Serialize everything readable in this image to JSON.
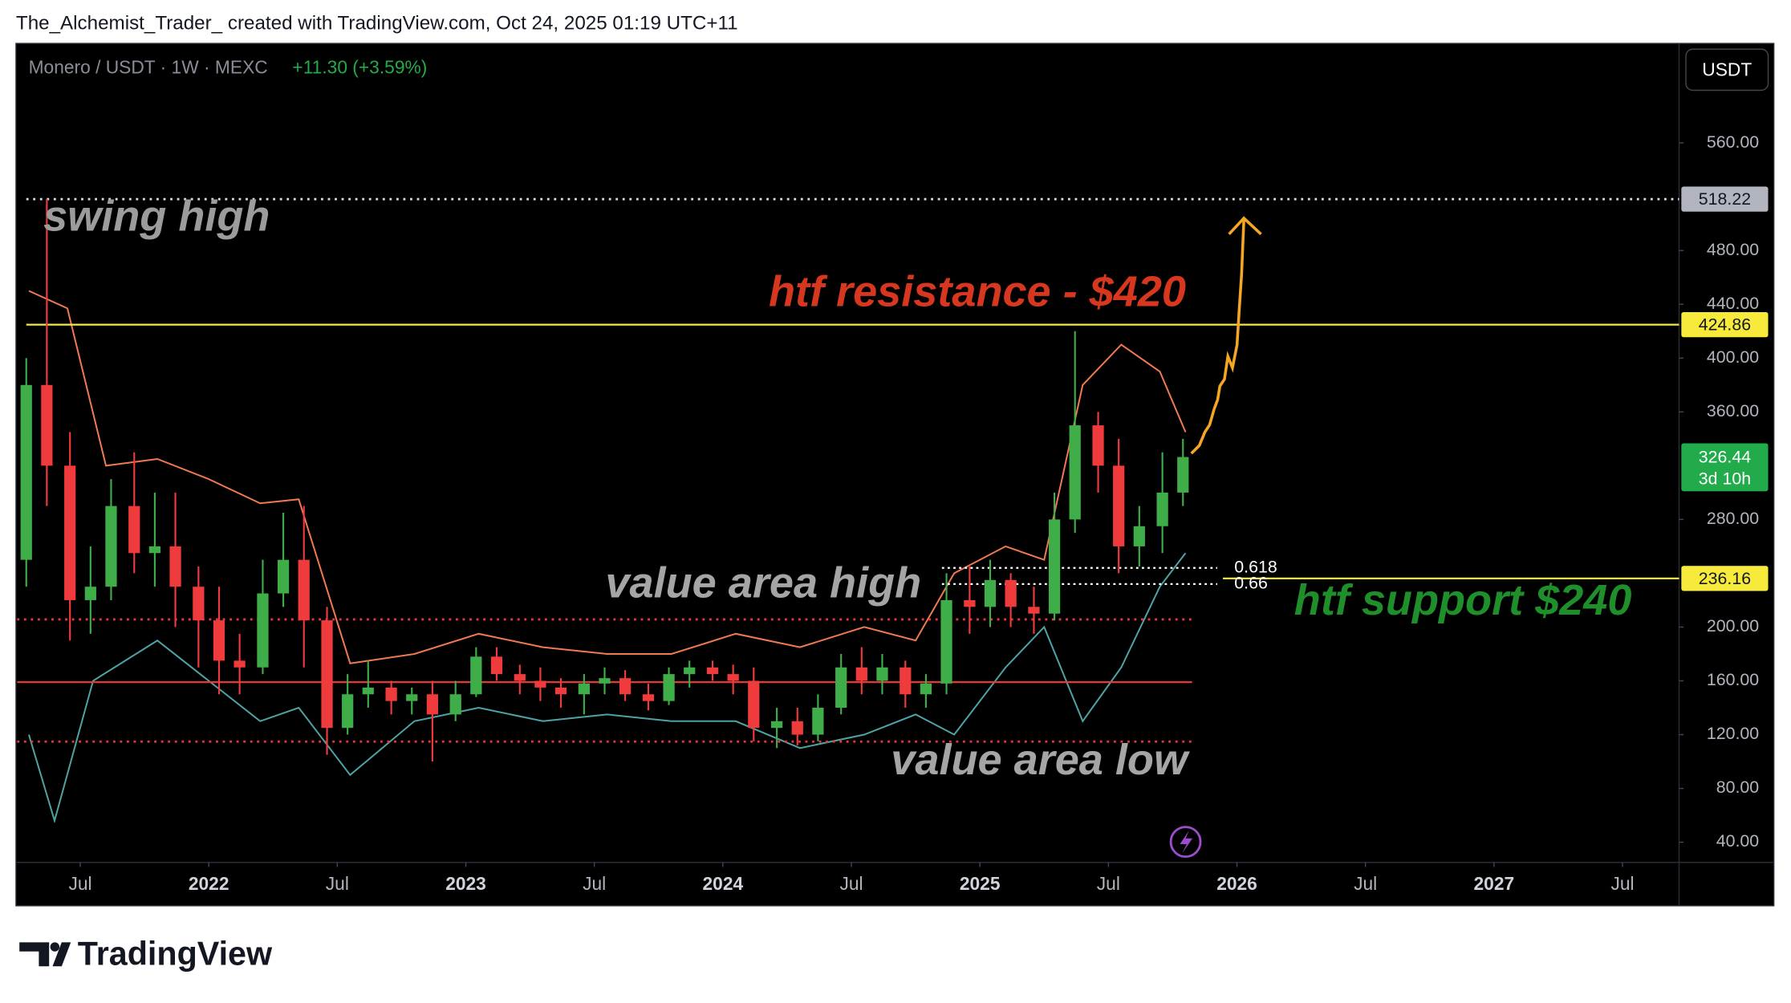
{
  "header": {
    "attribution": "The_Alchemist_Trader_ created with TradingView.com, Oct 24, 2025 01:19 UTC+11"
  },
  "chart_data": {
    "type": "candlestick",
    "symbol": "Monero / USDT · 1W · MEXC",
    "change": "+11.30 (+3.59%)",
    "currency": "USDT",
    "x": [
      2021.29,
      2021.37,
      2021.46,
      2021.54,
      2021.62,
      2021.71,
      2021.79,
      2021.87,
      2021.96,
      2022.04,
      2022.12,
      2022.21,
      2022.29,
      2022.37,
      2022.46,
      2022.54,
      2022.62,
      2022.71,
      2022.79,
      2022.87,
      2022.96,
      2023.04,
      2023.12,
      2023.21,
      2023.29,
      2023.37,
      2023.46,
      2023.54,
      2023.62,
      2023.71,
      2023.79,
      2023.87,
      2023.96,
      2024.04,
      2024.12,
      2024.21,
      2024.29,
      2024.37,
      2024.46,
      2024.54,
      2024.62,
      2024.71,
      2024.79,
      2024.87,
      2024.96,
      2025.04,
      2025.12,
      2025.21,
      2025.29,
      2025.37,
      2025.46,
      2025.54,
      2025.62,
      2025.71,
      2025.79
    ],
    "open": [
      250,
      380,
      320,
      220,
      230,
      290,
      255,
      260,
      230,
      205,
      175,
      170,
      225,
      250,
      205,
      125,
      150,
      155,
      145,
      150,
      135,
      150,
      178,
      165,
      160,
      155,
      150,
      158,
      162,
      150,
      145,
      165,
      170,
      165,
      160,
      125,
      130,
      120,
      140,
      170,
      160,
      170,
      150,
      158,
      220,
      215,
      235,
      215,
      210,
      280,
      350,
      320,
      260,
      275,
      300
    ],
    "high": [
      400,
      518.22,
      345,
      260,
      310,
      330,
      300,
      300,
      245,
      230,
      195,
      250,
      285,
      290,
      215,
      165,
      175,
      160,
      155,
      160,
      160,
      185,
      185,
      172,
      170,
      162,
      165,
      170,
      168,
      158,
      170,
      175,
      175,
      172,
      170,
      140,
      140,
      150,
      180,
      185,
      180,
      175,
      165,
      240,
      245,
      250,
      240,
      230,
      300,
      420,
      360,
      340,
      290,
      330,
      340
    ],
    "low": [
      230,
      290,
      190,
      195,
      220,
      240,
      230,
      200,
      170,
      150,
      150,
      165,
      215,
      170,
      105,
      120,
      140,
      135,
      135,
      100,
      130,
      148,
      160,
      150,
      145,
      140,
      135,
      150,
      145,
      138,
      142,
      155,
      160,
      150,
      115,
      110,
      112,
      115,
      135,
      150,
      150,
      140,
      140,
      150,
      195,
      200,
      200,
      195,
      205,
      270,
      300,
      240,
      245,
      255,
      290
    ],
    "close": [
      380,
      320,
      220,
      230,
      290,
      255,
      260,
      230,
      205,
      175,
      170,
      225,
      250,
      205,
      125,
      150,
      155,
      145,
      150,
      135,
      150,
      178,
      165,
      160,
      155,
      150,
      158,
      162,
      150,
      145,
      165,
      170,
      165,
      160,
      125,
      130,
      120,
      140,
      170,
      160,
      170,
      150,
      158,
      220,
      215,
      235,
      215,
      210,
      280,
      350,
      320,
      260,
      275,
      300,
      326.44
    ],
    "up_color": "#3fae49",
    "down_color": "#ef3b3b",
    "last_color": "#22ab4a",
    "countdown": "3d 10h",
    "bands": [
      {
        "color": "#f07a52",
        "x": [
          2021.3,
          2021.45,
          2021.6,
          2021.8,
          2022.0,
          2022.2,
          2022.35,
          2022.55,
          2022.8,
          2023.05,
          2023.3,
          2023.55,
          2023.8,
          2024.05,
          2024.3,
          2024.55,
          2024.75,
          2024.9,
          2025.1,
          2025.25,
          2025.4,
          2025.55,
          2025.7,
          2025.8
        ],
        "values": [
          450,
          437,
          320,
          325,
          310,
          292,
          295,
          173,
          180,
          195,
          185,
          180,
          180,
          195,
          185,
          200,
          190,
          240,
          260,
          250,
          380,
          410,
          390,
          345
        ]
      },
      {
        "color": "#4fa3a5",
        "x": [
          2021.3,
          2021.4,
          2021.55,
          2021.8,
          2022.0,
          2022.2,
          2022.35,
          2022.55,
          2022.8,
          2023.05,
          2023.3,
          2023.55,
          2023.8,
          2024.05,
          2024.3,
          2024.55,
          2024.75,
          2024.9,
          2025.1,
          2025.25,
          2025.4,
          2025.55,
          2025.7,
          2025.8
        ],
        "values": [
          120,
          56,
          160,
          190,
          160,
          130,
          140,
          90,
          130,
          140,
          130,
          135,
          130,
          130,
          110,
          120,
          135,
          120,
          170,
          200,
          130,
          170,
          230,
          255
        ]
      }
    ],
    "levels": [
      {
        "value": 518.22,
        "color": "#d9d9d9",
        "dash": "dotted",
        "span": "full",
        "badge": true,
        "badge_color": "#b2b5be"
      },
      {
        "value": 424.86,
        "color": "#f5e94a",
        "dash": "solid",
        "span": "full",
        "badge": true,
        "badge_color": "#f7ea3a"
      },
      {
        "value": 236.16,
        "color": "#f5e94a",
        "dash": "solid",
        "span": "right",
        "badge": true,
        "badge_color": "#f7ea3a"
      },
      {
        "value": 205.7,
        "color": "#e53935",
        "dash": "dotted",
        "span": "data",
        "badge": false
      },
      {
        "value": 114.8,
        "color": "#e53935",
        "dash": "dotted",
        "span": "data",
        "badge": false
      },
      {
        "value": 159,
        "color": "#e53935",
        "dash": "solid",
        "span": "data",
        "badge": false
      }
    ],
    "fib": [
      {
        "level": 0.618,
        "value": 244
      },
      {
        "level": 0.66,
        "value": 232
      }
    ],
    "annotations": [
      {
        "text": "swing high",
        "color": "#9c9c9c"
      },
      {
        "text": "htf resistance - $420",
        "color": "#d7371f"
      },
      {
        "text": "value area high",
        "color": "#a5a5a5"
      },
      {
        "text": "value area low",
        "color": "#a5a5a5"
      },
      {
        "text": "htf support $240",
        "color": "#1f8f2b"
      }
    ],
    "xlim": [
      2021.25,
      2027.72
    ],
    "xticks": [
      {
        "value": 2021.5,
        "label": "Jul"
      },
      2022,
      {
        "value": 2022.5,
        "label": "Jul"
      },
      2023,
      {
        "value": 2023.5,
        "label": "Jul"
      },
      2024,
      {
        "value": 2024.5,
        "label": "Jul"
      },
      2025,
      {
        "value": 2025.5,
        "label": "Jul"
      },
      2026,
      {
        "value": 2026.5,
        "label": "Jul"
      },
      2027,
      {
        "value": 2027.5,
        "label": "Jul"
      }
    ],
    "ylim": [
      25,
      634
    ],
    "yticks": [
      {
        "value": 40,
        "label": "40.00"
      },
      {
        "value": 80,
        "label": "80.00"
      },
      {
        "value": 120,
        "label": "120.00"
      },
      {
        "value": 160,
        "label": "160.00"
      },
      {
        "value": 200,
        "label": "200.00"
      },
      {
        "value": 280,
        "label": "280.00"
      },
      {
        "value": 360,
        "label": "360.00"
      },
      {
        "value": 400,
        "label": "400.00"
      },
      {
        "value": 440,
        "label": "440.00"
      },
      {
        "value": 480,
        "label": "480.00"
      },
      {
        "value": 560,
        "label": "560.00"
      }
    ],
    "grid": false
  },
  "footer": {
    "brand": "TradingView"
  }
}
